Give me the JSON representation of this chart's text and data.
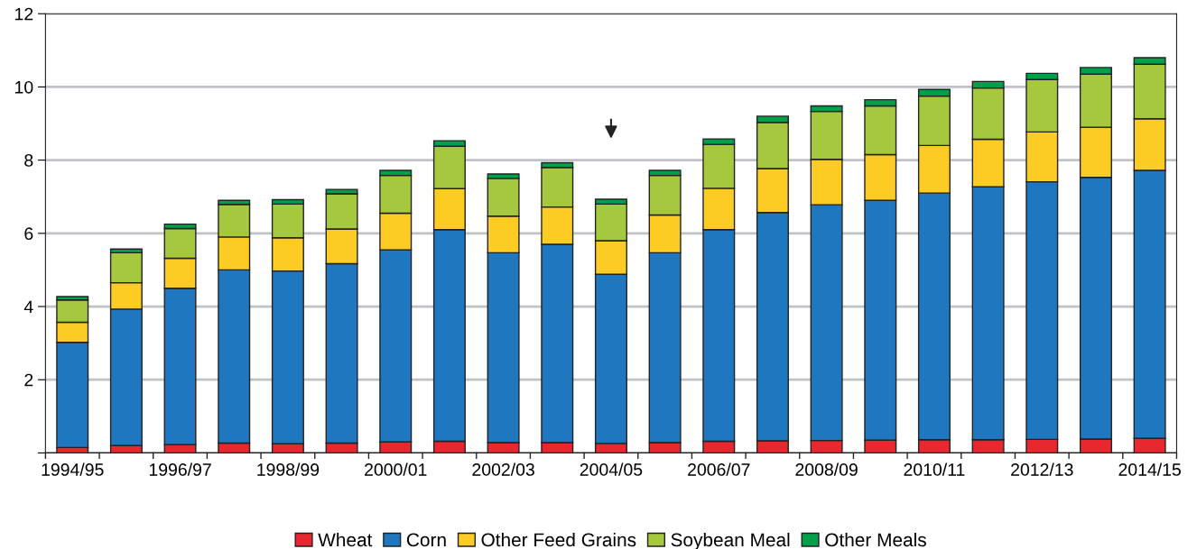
{
  "chart_data": {
    "type": "bar",
    "stacked": true,
    "categories": [
      "1994/95",
      null,
      "1996/97",
      null,
      "1998/99",
      null,
      "2000/01",
      null,
      "2002/03",
      null,
      "2004/05",
      null,
      "2006/07",
      null,
      "2008/09",
      null,
      "2010/11",
      null,
      "2012/13",
      null,
      "2014/15"
    ],
    "series": [
      {
        "name": "Wheat",
        "color": "#e8282e",
        "values": [
          0.15,
          0.2,
          0.23,
          0.27,
          0.25,
          0.27,
          0.3,
          0.32,
          0.28,
          0.28,
          0.26,
          0.28,
          0.32,
          0.33,
          0.34,
          0.35,
          0.36,
          0.36,
          0.37,
          0.38,
          0.4
        ]
      },
      {
        "name": "Corn",
        "color": "#1f78bf",
        "values": [
          2.87,
          3.73,
          4.27,
          4.73,
          4.72,
          4.9,
          5.25,
          5.78,
          5.19,
          5.42,
          4.62,
          5.19,
          5.78,
          6.24,
          6.44,
          6.55,
          6.74,
          6.91,
          7.04,
          7.15,
          7.32
        ]
      },
      {
        "name": "Other Feed Grains",
        "color": "#fccc24",
        "values": [
          0.55,
          0.72,
          0.82,
          0.9,
          0.91,
          0.95,
          1.0,
          1.12,
          1.0,
          1.02,
          0.92,
          1.03,
          1.13,
          1.2,
          1.24,
          1.25,
          1.3,
          1.3,
          1.36,
          1.37,
          1.41
        ]
      },
      {
        "name": "Soybean Meal",
        "color": "#a5c83f",
        "values": [
          0.61,
          0.82,
          0.81,
          0.89,
          0.92,
          0.96,
          1.03,
          1.16,
          1.03,
          1.08,
          1.0,
          1.08,
          1.2,
          1.26,
          1.31,
          1.33,
          1.35,
          1.4,
          1.43,
          1.45,
          1.49
        ]
      },
      {
        "name": "Other Meals",
        "color": "#00a04a",
        "values": [
          0.09,
          0.1,
          0.12,
          0.11,
          0.12,
          0.12,
          0.14,
          0.15,
          0.12,
          0.13,
          0.13,
          0.14,
          0.15,
          0.17,
          0.15,
          0.17,
          0.18,
          0.18,
          0.17,
          0.18,
          0.18
        ]
      }
    ],
    "ylim": [
      0,
      12
    ],
    "yticks": [
      {
        "value": 0,
        "label": null
      },
      2,
      4,
      6,
      8,
      10,
      12
    ],
    "grid": "y",
    "legend": "bottom"
  }
}
